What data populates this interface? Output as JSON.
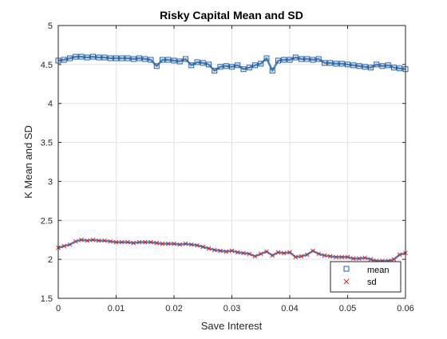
{
  "chart_data": {
    "type": "line",
    "title": "Risky Capital Mean and SD",
    "xlabel": "Save Interest",
    "ylabel": "K Mean and SD",
    "xlim": [
      0,
      0.06
    ],
    "ylim": [
      1.5,
      5
    ],
    "xticks": [
      0,
      0.01,
      0.02,
      0.03,
      0.04,
      0.05,
      0.06
    ],
    "xtick_labels": [
      "0",
      "0.01",
      "0.02",
      "0.03",
      "0.04",
      "0.05",
      "0.06"
    ],
    "yticks": [
      1.5,
      2,
      2.5,
      3,
      3.5,
      4,
      4.5,
      5
    ],
    "ytick_labels": [
      "1.5",
      "2",
      "2.5",
      "3",
      "3.5",
      "4",
      "4.5",
      "5"
    ],
    "grid": true,
    "legend_position": "bottom-right",
    "colors": {
      "line": "#4a7fc1",
      "mean_marker": "#1f5faa",
      "sd_marker": "#d62728",
      "axis": "#262626",
      "grid": "#e3e3e3"
    },
    "series": [
      {
        "name": "mean",
        "marker": "square",
        "x": [
          0,
          0.001,
          0.002,
          0.003,
          0.004,
          0.005,
          0.006,
          0.007,
          0.008,
          0.009,
          0.01,
          0.011,
          0.012,
          0.013,
          0.014,
          0.015,
          0.016,
          0.017,
          0.018,
          0.019,
          0.02,
          0.021,
          0.022,
          0.023,
          0.024,
          0.025,
          0.026,
          0.027,
          0.028,
          0.029,
          0.03,
          0.031,
          0.032,
          0.033,
          0.034,
          0.035,
          0.036,
          0.037,
          0.038,
          0.039,
          0.04,
          0.041,
          0.042,
          0.043,
          0.044,
          0.045,
          0.046,
          0.047,
          0.048,
          0.049,
          0.05,
          0.051,
          0.052,
          0.053,
          0.054,
          0.055,
          0.056,
          0.057,
          0.058,
          0.059,
          0.06
        ],
        "y": [
          4.55,
          4.56,
          4.58,
          4.6,
          4.6,
          4.59,
          4.6,
          4.59,
          4.59,
          4.58,
          4.58,
          4.58,
          4.58,
          4.57,
          4.58,
          4.57,
          4.56,
          4.48,
          4.56,
          4.56,
          4.55,
          4.54,
          4.57,
          4.49,
          4.53,
          4.52,
          4.5,
          4.42,
          4.47,
          4.48,
          4.47,
          4.49,
          4.44,
          4.46,
          4.49,
          4.51,
          4.58,
          4.42,
          4.55,
          4.56,
          4.56,
          4.59,
          4.57,
          4.57,
          4.56,
          4.57,
          4.52,
          4.52,
          4.51,
          4.51,
          4.5,
          4.49,
          4.48,
          4.47,
          4.46,
          4.5,
          4.48,
          4.49,
          4.46,
          4.45,
          4.44
        ]
      },
      {
        "name": "sd",
        "marker": "x",
        "x": [
          0,
          0.001,
          0.002,
          0.003,
          0.004,
          0.005,
          0.006,
          0.007,
          0.008,
          0.009,
          0.01,
          0.011,
          0.012,
          0.013,
          0.014,
          0.015,
          0.016,
          0.017,
          0.018,
          0.019,
          0.02,
          0.021,
          0.022,
          0.023,
          0.024,
          0.025,
          0.026,
          0.027,
          0.028,
          0.029,
          0.03,
          0.031,
          0.032,
          0.033,
          0.034,
          0.035,
          0.036,
          0.037,
          0.038,
          0.039,
          0.04,
          0.041,
          0.042,
          0.043,
          0.044,
          0.045,
          0.046,
          0.047,
          0.048,
          0.049,
          0.05,
          0.051,
          0.052,
          0.053,
          0.054,
          0.055,
          0.056,
          0.057,
          0.058,
          0.059,
          0.06
        ],
        "y": [
          2.15,
          2.17,
          2.19,
          2.23,
          2.25,
          2.24,
          2.25,
          2.24,
          2.24,
          2.23,
          2.22,
          2.22,
          2.22,
          2.21,
          2.22,
          2.22,
          2.22,
          2.21,
          2.2,
          2.2,
          2.2,
          2.19,
          2.2,
          2.19,
          2.18,
          2.16,
          2.14,
          2.12,
          2.11,
          2.1,
          2.11,
          2.09,
          2.08,
          2.07,
          2.04,
          2.07,
          2.1,
          2.05,
          2.09,
          2.08,
          2.09,
          2.03,
          2.04,
          2.06,
          2.11,
          2.07,
          2.05,
          2.04,
          2.03,
          2.03,
          2.03,
          2.01,
          2.01,
          2.02,
          2.0,
          1.98,
          1.98,
          1.98,
          2.0,
          2.06,
          2.08
        ]
      }
    ]
  }
}
